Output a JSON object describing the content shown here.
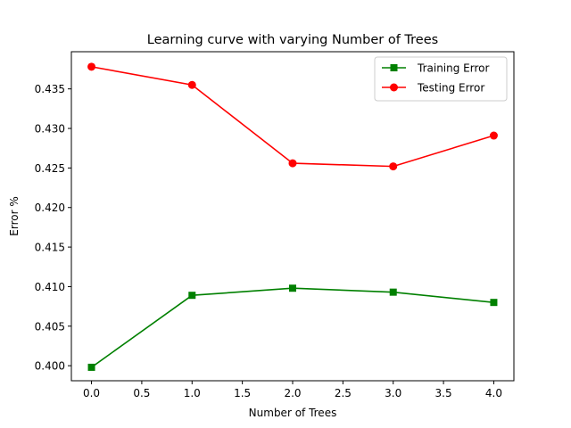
{
  "chart_data": {
    "type": "line",
    "title": "Learning curve with varying Number of Trees",
    "xlabel": "Number of Trees",
    "ylabel": "Error %",
    "xlim": [
      -0.2,
      4.2
    ],
    "ylim": [
      0.3981,
      0.4397
    ],
    "xticks": [
      0.0,
      0.5,
      1.0,
      1.5,
      2.0,
      2.5,
      3.0,
      3.5,
      4.0
    ],
    "xtick_labels": [
      "0.0",
      "0.5",
      "1.0",
      "1.5",
      "2.0",
      "2.5",
      "3.0",
      "3.5",
      "4.0"
    ],
    "yticks": [
      0.4,
      0.405,
      0.41,
      0.415,
      0.42,
      0.425,
      0.43,
      0.435
    ],
    "ytick_labels": [
      "0.400",
      "0.405",
      "0.410",
      "0.415",
      "0.420",
      "0.425",
      "0.430",
      "0.435"
    ],
    "grid": false,
    "legend_position": "top-right",
    "x": [
      0,
      1,
      2,
      3,
      4
    ],
    "series": [
      {
        "name": "Training Error",
        "values": [
          0.3998,
          0.4089,
          0.4098,
          0.4093,
          0.408
        ],
        "color": "#008000",
        "marker": "square"
      },
      {
        "name": "Testing Error",
        "values": [
          0.4378,
          0.4355,
          0.4256,
          0.4252,
          0.4291
        ],
        "color": "#ff0000",
        "marker": "circle"
      }
    ]
  }
}
